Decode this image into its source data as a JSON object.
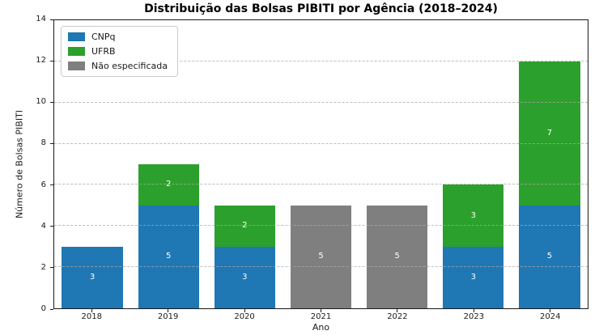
{
  "chart_data": {
    "type": "bar",
    "stacked": true,
    "title": "Distribuição das Bolsas PIBITI por Agência (2018–2024)",
    "xlabel": "Ano",
    "ylabel": "Número de Bolsas PIBITI",
    "categories": [
      "2018",
      "2019",
      "2020",
      "2021",
      "2022",
      "2023",
      "2024"
    ],
    "series": [
      {
        "name": "CNPq",
        "color": "#1f77b4",
        "values": [
          3,
          5,
          3,
          0,
          0,
          3,
          5
        ]
      },
      {
        "name": "UFRB",
        "color": "#2ca02c",
        "values": [
          0,
          2,
          2,
          0,
          0,
          3,
          7
        ]
      },
      {
        "name": "Não especificada",
        "color": "#7f7f7f",
        "values": [
          0,
          0,
          0,
          5,
          5,
          0,
          0
        ]
      }
    ],
    "totals": [
      3,
      7,
      5,
      5,
      5,
      6,
      12
    ],
    "ylim": [
      0,
      14
    ],
    "ytick_step": 2,
    "grid": "horizontal-dashed",
    "legend_position": "upper left",
    "bar_label_color": "#ffffff",
    "bar_width_fraction": 0.8
  }
}
